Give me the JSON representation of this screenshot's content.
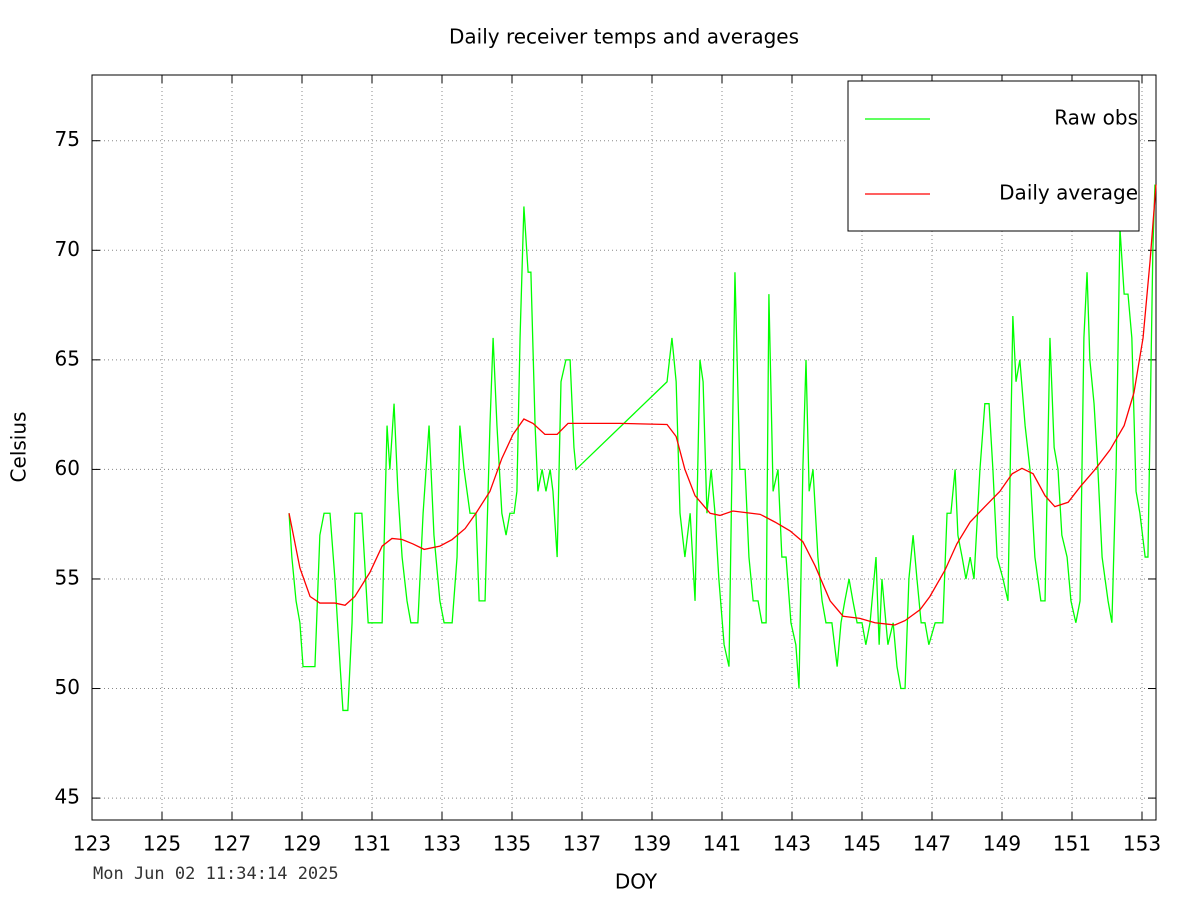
{
  "chart_data": {
    "type": "line",
    "title": "Daily receiver temps and averages",
    "xlabel": "DOY",
    "ylabel": "Celsius",
    "timestamp": "Mon Jun 02 11:34:14 2025",
    "xlim": [
      123,
      153.4
    ],
    "ylim": [
      44,
      78
    ],
    "xticks": [
      123,
      125,
      127,
      129,
      131,
      133,
      135,
      137,
      139,
      141,
      143,
      145,
      147,
      149,
      151,
      153
    ],
    "yticks": [
      45,
      50,
      55,
      60,
      65,
      70,
      75
    ],
    "grid": true,
    "legend": "top right",
    "series": [
      {
        "name": "Raw obs",
        "color": "#00ff00",
        "x": [
          128.63,
          128.71,
          128.83,
          128.94,
          129.03,
          129.37,
          129.51,
          129.63,
          129.8,
          129.94,
          130.09,
          130.17,
          130.31,
          130.43,
          130.51,
          130.71,
          130.89,
          131.29,
          131.43,
          131.51,
          131.63,
          131.74,
          131.86,
          132,
          132.11,
          132.31,
          132.46,
          132.63,
          132.77,
          132.94,
          133.06,
          133.29,
          133.43,
          133.51,
          133.63,
          133.8,
          133.97,
          134.06,
          134.23,
          134.37,
          134.46,
          134.57,
          134.71,
          134.83,
          134.94,
          135.06,
          135.14,
          135.23,
          135.34,
          135.46,
          135.54,
          135.66,
          135.74,
          135.86,
          135.97,
          136.09,
          136.17,
          136.29,
          136.4,
          136.54,
          136.66,
          136.77,
          136.83,
          139.43,
          139.57,
          139.69,
          139.8,
          139.94,
          140.09,
          140.23,
          140.37,
          140.46,
          140.57,
          140.69,
          140.8,
          140.91,
          141.06,
          141.2,
          141.37,
          141.51,
          141.66,
          141.77,
          141.89,
          142.03,
          142.14,
          142.26,
          142.34,
          142.46,
          142.6,
          142.71,
          142.83,
          142.97,
          143.11,
          143.2,
          143.31,
          143.4,
          143.49,
          143.6,
          143.74,
          143.86,
          143.97,
          144.14,
          144.29,
          144.4,
          144.51,
          144.63,
          144.74,
          144.86,
          145,
          145.11,
          145.23,
          145.4,
          145.49,
          145.57,
          145.74,
          145.89,
          146,
          146.11,
          146.23,
          146.34,
          146.46,
          146.57,
          146.69,
          146.8,
          146.91,
          147.09,
          147.31,
          147.43,
          147.54,
          147.66,
          147.74,
          147.86,
          147.97,
          148.09,
          148.2,
          148.37,
          148.51,
          148.63,
          148.74,
          148.86,
          149.03,
          149.17,
          149.31,
          149.4,
          149.51,
          149.66,
          149.8,
          149.94,
          150.11,
          150.23,
          150.37,
          150.49,
          150.6,
          150.71,
          150.86,
          150.97,
          151.11,
          151.23,
          151.34,
          151.43,
          151.51,
          151.63,
          151.74,
          151.86,
          152.03,
          152.14,
          152.26,
          152.37,
          152.49,
          152.6,
          152.71,
          152.83,
          152.94,
          153.09,
          153.17,
          153.31,
          153.37
        ],
        "values": [
          58,
          56,
          54,
          53,
          51,
          51,
          57,
          58,
          58,
          55,
          51,
          49,
          49,
          53,
          58,
          58,
          53,
          53,
          62,
          60,
          63,
          59,
          56,
          54,
          53,
          53,
          58,
          62,
          57,
          54,
          53,
          53,
          56,
          62,
          60,
          58,
          58,
          54,
          54,
          62,
          66,
          62,
          58,
          57,
          58,
          58,
          59,
          66,
          72,
          69,
          69,
          62,
          59,
          60,
          59,
          60,
          59,
          56,
          64,
          65,
          65,
          61,
          60,
          64,
          66,
          64,
          58,
          56,
          58,
          54,
          65,
          64,
          58,
          60,
          58,
          55,
          52,
          51,
          69,
          60,
          60,
          56,
          54,
          54,
          53,
          53,
          68,
          59,
          60,
          56,
          56,
          53,
          52,
          50,
          60,
          65,
          59,
          60,
          56,
          54,
          53,
          53,
          51,
          53,
          54,
          55,
          54,
          53,
          53,
          52,
          53,
          56,
          52,
          55,
          52,
          53,
          51,
          50,
          50,
          55,
          57,
          55,
          53,
          53,
          52,
          53,
          53,
          58,
          58,
          60,
          57,
          56,
          55,
          56,
          55,
          60,
          63,
          63,
          60,
          56,
          55,
          54,
          67,
          64,
          65,
          62,
          60,
          56,
          54,
          54,
          66,
          61,
          60,
          57,
          56,
          54,
          53,
          54,
          66,
          69,
          65,
          63,
          60,
          56,
          54,
          53,
          60,
          71,
          68,
          68,
          66,
          59,
          58,
          56,
          56,
          70,
          73
        ]
      },
      {
        "name": "Daily average",
        "color": "#ff0000",
        "x": [
          128.63,
          128.94,
          129.23,
          129.51,
          129.94,
          130.23,
          130.51,
          130.94,
          131.29,
          131.57,
          131.86,
          132.17,
          132.49,
          132.94,
          133.29,
          133.66,
          133.97,
          134.37,
          134.71,
          135.03,
          135.34,
          135.6,
          135.94,
          136.29,
          136.6,
          136.94,
          138.09,
          139.43,
          139.69,
          139.94,
          140.23,
          140.66,
          140.94,
          141.31,
          142.09,
          142.51,
          142.94,
          143.31,
          143.66,
          144.09,
          144.46,
          144.94,
          145.37,
          145.94,
          146.23,
          146.66,
          146.94,
          147.37,
          147.71,
          148.09,
          148.51,
          148.94,
          149.29,
          149.57,
          149.89,
          150.23,
          150.51,
          150.89,
          151.23,
          151.66,
          152.09,
          152.49,
          152.77,
          153.03,
          153.23,
          153.4
        ],
        "values": [
          58,
          55.5,
          54.2,
          53.9,
          53.9,
          53.8,
          54.2,
          55.3,
          56.5,
          56.85,
          56.8,
          56.6,
          56.35,
          56.5,
          56.8,
          57.3,
          58,
          59,
          60.5,
          61.6,
          62.3,
          62.1,
          61.6,
          61.6,
          62.1,
          62.1,
          62.1,
          62.05,
          61.5,
          60,
          58.8,
          58,
          57.9,
          58.1,
          57.95,
          57.6,
          57.2,
          56.7,
          55.6,
          54,
          53.3,
          53.2,
          53,
          52.9,
          53.1,
          53.6,
          54.2,
          55.4,
          56.6,
          57.6,
          58.3,
          59,
          59.8,
          60.05,
          59.8,
          58.8,
          58.3,
          58.5,
          59.2,
          60,
          60.9,
          62,
          63.5,
          66,
          69.5,
          73
        ]
      }
    ]
  }
}
